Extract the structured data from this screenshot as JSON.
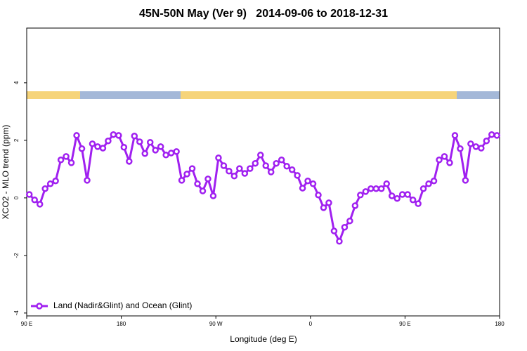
{
  "chart_data": {
    "type": "line",
    "title": "45N-50N May (Ver 9)   2014-09-06 to 2018-12-31",
    "xlabel": "Longitude (deg E)",
    "ylabel": "XCO2 - MLO trend (ppm)",
    "xlim": [
      90,
      540
    ],
    "ylim": [
      -4.1,
      5.9
    ],
    "xticks": [
      {
        "value": 90,
        "label": "90 E"
      },
      180,
      {
        "value": 270,
        "label": "90 W"
      },
      {
        "value": 360,
        "label": "0"
      },
      {
        "value": 450,
        "label": "90 E"
      },
      {
        "value": 540,
        "label": "180"
      }
    ],
    "yticks": [
      -4,
      -2,
      0,
      2,
      4
    ],
    "legend": "bottom-left",
    "series": [
      {
        "name": "Land (Nadir&Glint) and Ocean (Glint)",
        "color": "#a020f0",
        "x": [
          92.5,
          97.5,
          102.5,
          107.5,
          112.5,
          117.5,
          122.5,
          127.5,
          132.5,
          137.5,
          142.5,
          147.5,
          152.5,
          157.5,
          162.5,
          167.5,
          172.5,
          177.5,
          182.5,
          187.5,
          192.5,
          197.5,
          202.5,
          207.5,
          212.5,
          217.5,
          222.5,
          227.5,
          232.5,
          237.5,
          242.5,
          247.5,
          252.5,
          257.5,
          262.5,
          267.5,
          272.5,
          277.5,
          282.5,
          287.5,
          292.5,
          297.5,
          302.5,
          307.5,
          312.5,
          317.5,
          322.5,
          327.5,
          332.5,
          337.5,
          342.5,
          347.5,
          352.5,
          357.5,
          362.5,
          367.5,
          372.5,
          377.5,
          382.5,
          387.5,
          392.5,
          397.5,
          402.5,
          407.5,
          412.5,
          417.5,
          422.5,
          427.5,
          432.5,
          437.5,
          442.5,
          447.5,
          452.5,
          457.5,
          462.5,
          467.5,
          472.5,
          477.5,
          482.5,
          487.5,
          492.5,
          497.5,
          502.5,
          507.5,
          512.5,
          517.5,
          522.5,
          527.5,
          532.5,
          537.5
        ],
        "values": [
          0.12,
          -0.07,
          -0.22,
          0.32,
          0.49,
          0.59,
          1.32,
          1.44,
          1.22,
          2.17,
          1.71,
          0.61,
          1.88,
          1.78,
          1.73,
          1.98,
          2.2,
          2.17,
          1.76,
          1.27,
          2.15,
          1.95,
          1.54,
          1.93,
          1.66,
          1.78,
          1.49,
          1.56,
          1.61,
          0.61,
          0.83,
          1.02,
          0.49,
          0.24,
          0.66,
          0.07,
          1.39,
          1.12,
          0.93,
          0.76,
          1.02,
          0.85,
          1.02,
          1.2,
          1.49,
          1.12,
          0.9,
          1.2,
          1.32,
          1.1,
          0.98,
          0.78,
          0.34,
          0.59,
          0.49,
          0.1,
          -0.34,
          -0.17,
          -1.15,
          -1.51,
          -1.02,
          -0.8,
          -0.27,
          0.1,
          0.22,
          0.32,
          0.32,
          0.32,
          0.49,
          0.07,
          -0.02,
          0.12,
          0.12,
          -0.07,
          -0.2,
          0.32,
          0.49,
          0.59,
          1.32,
          1.44,
          1.22,
          2.17,
          1.71,
          0.61,
          1.88,
          1.78,
          1.73,
          1.98,
          2.2,
          2.17
        ]
      }
    ]
  }
}
